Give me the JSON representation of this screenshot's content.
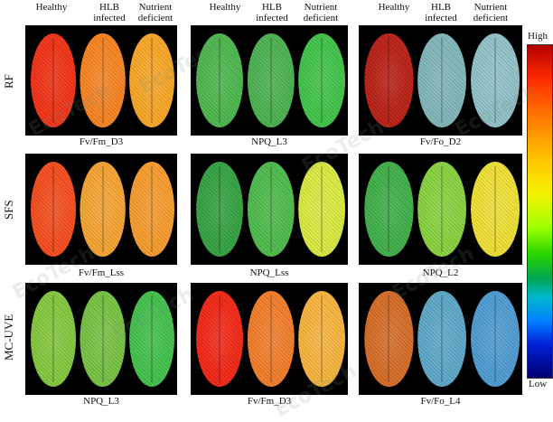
{
  "column_headers": {
    "group1": [
      "Healthy",
      "HLB\ninfected",
      "Nutrient\ndeficient"
    ],
    "group2": [
      "Healthy",
      "HLB\ninfected",
      "Nutrient\ndeficient"
    ],
    "group3": [
      "Healthy",
      "HLB\ninfected",
      "Nutrient\ndeficient"
    ]
  },
  "row_labels": [
    "RF",
    "SFS",
    "MC-UVE"
  ],
  "panels": [
    {
      "label": "Fv/Fm_D3",
      "leaves": [
        "#f12f12",
        "#f6821e",
        "#f8a523"
      ]
    },
    {
      "label": "NPQ_L3",
      "leaves": [
        "#49b54a",
        "#48b04d",
        "#3ec247"
      ]
    },
    {
      "label": "Fv/Fo_D2",
      "leaves": [
        "#b81d12",
        "#7fb5b8",
        "#8fc0c8"
      ]
    },
    {
      "label": "Fv/Fm_Lss",
      "leaves": [
        "#f44a1b",
        "#f5a12f",
        "#f79a2b"
      ]
    },
    {
      "label": "NPQ_Lss",
      "leaves": [
        "#31a03f",
        "#4bb94a",
        "#d7ea3d"
      ]
    },
    {
      "label": "NPQ_L2",
      "leaves": [
        "#3dad46",
        "#86d13b",
        "#eedf31"
      ]
    },
    {
      "label": "NPQ_L3",
      "leaves": [
        "#82c63b",
        "#75c03f",
        "#3fbf49"
      ]
    },
    {
      "label": "Fv/Fm_D3",
      "leaves": [
        "#f22412",
        "#f17b27",
        "#f6b23a"
      ]
    },
    {
      "label": "Fv/Fo_L4",
      "leaves": [
        "#d36a25",
        "#5aa6c6",
        "#4b9ad0"
      ]
    }
  ],
  "colorbar": {
    "high": "High",
    "low": "Low"
  },
  "watermarks": [
    "EcoTech",
    "EcoTech",
    "EcoTech",
    "EcoTech",
    "EcoTech",
    "EcoTech",
    "EcoTech",
    "EcoTech"
  ]
}
